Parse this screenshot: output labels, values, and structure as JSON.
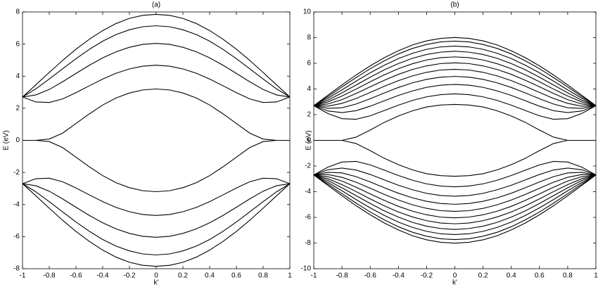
{
  "chart_data": [
    {
      "type": "line",
      "title": "(a)",
      "y_label": "E (eV)",
      "x_label": "k'",
      "color": "#000000",
      "xlim": [
        -1,
        1
      ],
      "ylim": [
        -8,
        8
      ],
      "xticks": [
        -1,
        -0.8,
        -0.6,
        -0.4,
        -0.2,
        0,
        0.2,
        0.4,
        0.6,
        0.8,
        1
      ],
      "yticks": [
        -8,
        -6,
        -4,
        -2,
        0,
        2,
        4,
        6,
        8
      ],
      "x": [
        -1,
        -0.9,
        -0.8,
        -0.7,
        -0.6,
        -0.5,
        -0.4,
        -0.3,
        -0.2,
        -0.1,
        0,
        0.1,
        0.2,
        0.3,
        0.4,
        0.5,
        0.6,
        0.7,
        0.8,
        0.9,
        1
      ],
      "series": [
        {
          "values": [
            2.7,
            3.46,
            4.23,
            4.98,
            5.68,
            6.3,
            6.84,
            7.28,
            7.6,
            7.79,
            7.85,
            7.79,
            7.6,
            7.28,
            6.84,
            6.3,
            5.68,
            4.98,
            4.23,
            3.46,
            2.7
          ]
        },
        {
          "values": [
            2.7,
            3.21,
            3.82,
            4.46,
            5.09,
            5.67,
            6.18,
            6.59,
            6.89,
            7.08,
            7.14,
            7.08,
            6.89,
            6.59,
            6.18,
            5.67,
            5.09,
            4.46,
            3.82,
            3.21,
            2.7
          ]
        },
        {
          "values": [
            2.7,
            2.83,
            3.17,
            3.65,
            4.17,
            4.68,
            5.14,
            5.52,
            5.8,
            5.98,
            6.04,
            5.98,
            5.8,
            5.52,
            5.14,
            4.68,
            4.17,
            3.65,
            3.17,
            2.83,
            2.7
          ]
        },
        {
          "values": [
            2.7,
            2.39,
            2.36,
            2.58,
            2.97,
            3.4,
            3.82,
            4.18,
            4.45,
            4.62,
            4.68,
            4.62,
            4.45,
            4.18,
            3.82,
            3.4,
            2.97,
            2.58,
            2.36,
            2.39,
            2.7
          ]
        },
        {
          "values": [
            0,
            0,
            0.08,
            0.45,
            1.05,
            1.65,
            2.2,
            2.64,
            2.95,
            3.14,
            3.2,
            3.14,
            2.95,
            2.64,
            2.2,
            1.65,
            1.05,
            0.45,
            0.08,
            0,
            0
          ]
        },
        {
          "values": [
            0,
            0,
            -0.08,
            -0.45,
            -1.05,
            -1.65,
            -2.2,
            -2.64,
            -2.95,
            -3.14,
            -3.2,
            -3.14,
            -2.95,
            -2.64,
            -2.2,
            -1.65,
            -1.05,
            -0.45,
            -0.08,
            0,
            0
          ]
        },
        {
          "values": [
            -2.7,
            -2.39,
            -2.36,
            -2.58,
            -2.97,
            -3.4,
            -3.82,
            -4.18,
            -4.45,
            -4.62,
            -4.68,
            -4.62,
            -4.45,
            -4.18,
            -3.82,
            -3.4,
            -2.97,
            -2.58,
            -2.36,
            -2.39,
            -2.7
          ]
        },
        {
          "values": [
            -2.7,
            -2.83,
            -3.17,
            -3.65,
            -4.17,
            -4.68,
            -5.14,
            -5.52,
            -5.8,
            -5.98,
            -6.04,
            -5.98,
            -5.8,
            -5.52,
            -5.14,
            -4.68,
            -4.17,
            -3.65,
            -3.17,
            -2.83,
            -2.7
          ]
        },
        {
          "values": [
            -2.7,
            -3.21,
            -3.82,
            -4.46,
            -5.09,
            -5.67,
            -6.18,
            -6.59,
            -6.89,
            -7.08,
            -7.14,
            -7.08,
            -6.89,
            -6.59,
            -6.18,
            -5.67,
            -5.09,
            -4.46,
            -3.82,
            -3.21,
            -2.7
          ]
        },
        {
          "values": [
            -2.7,
            -3.46,
            -4.23,
            -4.98,
            -5.68,
            -6.3,
            -6.84,
            -7.28,
            -7.6,
            -7.79,
            -7.85,
            -7.79,
            -7.6,
            -7.28,
            -6.84,
            -6.3,
            -5.68,
            -4.98,
            -4.23,
            -3.46,
            -2.7
          ]
        }
      ]
    },
    {
      "type": "line",
      "title": "(b)",
      "y_label": "E (eV)",
      "x_label": "k'",
      "color": "#000000",
      "xlim": [
        -1,
        1
      ],
      "ylim": [
        -10,
        10
      ],
      "xticks": [
        -1,
        -0.8,
        -0.6,
        -0.4,
        -0.2,
        0,
        0.2,
        0.4,
        0.6,
        0.8,
        1
      ],
      "yticks": [
        -10,
        -8,
        -6,
        -4,
        -2,
        0,
        2,
        4,
        6,
        8,
        10
      ],
      "x": [
        -1,
        -0.9,
        -0.8,
        -0.7,
        -0.6,
        -0.5,
        -0.4,
        -0.3,
        -0.2,
        -0.1,
        0,
        0.1,
        0.2,
        0.3,
        0.4,
        0.5,
        0.6,
        0.7,
        0.8,
        0.9,
        1
      ],
      "series": [
        {
          "values": [
            2.7,
            3.51,
            4.32,
            5.09,
            5.8,
            6.44,
            6.98,
            7.43,
            7.75,
            7.94,
            8.01,
            7.94,
            7.75,
            7.43,
            6.98,
            6.44,
            5.8,
            5.09,
            4.32,
            3.51,
            2.7
          ]
        },
        {
          "values": [
            2.7,
            3.41,
            4.16,
            4.89,
            5.58,
            6.19,
            6.73,
            7.16,
            7.47,
            7.67,
            7.73,
            7.67,
            7.47,
            7.16,
            6.73,
            6.19,
            5.58,
            4.89,
            4.16,
            3.41,
            2.7
          ]
        },
        {
          "values": [
            2.7,
            3.28,
            3.93,
            4.61,
            5.26,
            5.85,
            6.37,
            6.78,
            7.09,
            7.28,
            7.34,
            7.28,
            7.09,
            6.78,
            6.37,
            5.85,
            5.26,
            4.61,
            3.93,
            3.28,
            2.7
          ]
        },
        {
          "values": [
            2.7,
            3.13,
            3.7,
            4.31,
            4.92,
            5.49,
            5.98,
            6.39,
            6.69,
            6.87,
            6.94,
            6.87,
            6.69,
            6.39,
            5.98,
            5.49,
            4.92,
            4.31,
            3.7,
            3.13,
            2.7
          ]
        },
        {
          "values": [
            2.7,
            2.99,
            3.45,
            3.99,
            4.56,
            5.1,
            5.58,
            5.97,
            6.26,
            6.44,
            6.5,
            6.44,
            6.26,
            5.97,
            5.58,
            5.1,
            4.56,
            3.99,
            3.45,
            2.99,
            2.7
          ]
        },
        {
          "values": [
            2.7,
            2.83,
            3.17,
            3.65,
            4.17,
            4.68,
            5.14,
            5.52,
            5.8,
            5.98,
            6.04,
            5.98,
            5.8,
            5.52,
            5.14,
            4.68,
            4.17,
            3.65,
            3.17,
            2.83,
            2.7
          ]
        },
        {
          "values": [
            2.7,
            2.66,
            2.88,
            3.26,
            3.73,
            4.21,
            4.65,
            5.02,
            5.3,
            5.48,
            5.53,
            5.48,
            5.3,
            5.02,
            4.65,
            4.21,
            3.73,
            3.26,
            2.88,
            2.66,
            2.7
          ]
        },
        {
          "values": [
            2.7,
            2.49,
            2.54,
            2.83,
            3.24,
            3.69,
            4.12,
            4.48,
            4.75,
            4.92,
            4.98,
            4.92,
            4.75,
            4.48,
            4.12,
            3.69,
            3.24,
            2.83,
            2.54,
            2.49,
            2.7
          ]
        },
        {
          "values": [
            2.7,
            2.29,
            2.16,
            2.31,
            2.66,
            3.08,
            3.5,
            3.85,
            4.13,
            4.3,
            4.35,
            4.3,
            4.13,
            3.85,
            3.5,
            3.08,
            2.66,
            2.31,
            2.16,
            2.29,
            2.7
          ]
        },
        {
          "values": [
            2.7,
            2.09,
            1.69,
            1.64,
            1.91,
            2.32,
            2.74,
            3.11,
            3.39,
            3.56,
            3.62,
            3.56,
            3.39,
            3.11,
            2.74,
            2.32,
            1.91,
            1.64,
            1.69,
            2.09,
            2.7
          ]
        },
        {
          "values": [
            0,
            0,
            0,
            0.25,
            0.8,
            1.4,
            1.9,
            2.3,
            2.6,
            2.75,
            2.8,
            2.75,
            2.6,
            2.3,
            1.9,
            1.4,
            0.8,
            0.25,
            0,
            0,
            0
          ]
        },
        {
          "values": [
            0,
            0,
            0,
            -0.25,
            -0.8,
            -1.4,
            -1.9,
            -2.3,
            -2.6,
            -2.75,
            -2.8,
            -2.75,
            -2.6,
            -2.3,
            -1.9,
            -1.4,
            -0.8,
            -0.25,
            0,
            0,
            0
          ]
        },
        {
          "values": [
            -2.7,
            -2.09,
            -1.69,
            -1.64,
            -1.91,
            -2.32,
            -2.74,
            -3.11,
            -3.39,
            -3.56,
            -3.62,
            -3.56,
            -3.39,
            -3.11,
            -2.74,
            -2.32,
            -1.91,
            -1.64,
            -1.69,
            -2.09,
            -2.7
          ]
        },
        {
          "values": [
            -2.7,
            -2.29,
            -2.16,
            -2.31,
            -2.66,
            -3.08,
            -3.5,
            -3.85,
            -4.13,
            -4.3,
            -4.35,
            -4.3,
            -4.13,
            -3.85,
            -3.5,
            -3.08,
            -2.66,
            -2.31,
            -2.16,
            -2.29,
            -2.7
          ]
        },
        {
          "values": [
            -2.7,
            -2.49,
            -2.54,
            -2.83,
            -3.24,
            -3.69,
            -4.12,
            -4.48,
            -4.75,
            -4.92,
            -4.98,
            -4.92,
            -4.75,
            -4.48,
            -4.12,
            -3.69,
            -3.24,
            -2.83,
            -2.54,
            -2.49,
            -2.7
          ]
        },
        {
          "values": [
            -2.7,
            -2.66,
            -2.88,
            -3.26,
            -3.73,
            -4.21,
            -4.65,
            -5.02,
            -5.3,
            -5.48,
            -5.53,
            -5.48,
            -5.3,
            -5.02,
            -4.65,
            -4.21,
            -3.73,
            -3.26,
            -2.88,
            -2.66,
            -2.7
          ]
        },
        {
          "values": [
            -2.7,
            -2.83,
            -3.17,
            -3.65,
            -4.17,
            -4.68,
            -5.14,
            -5.52,
            -5.8,
            -5.98,
            -6.04,
            -5.98,
            -5.8,
            -5.52,
            -5.14,
            -4.68,
            -4.17,
            -3.65,
            -3.17,
            -2.83,
            -2.7
          ]
        },
        {
          "values": [
            -2.7,
            -2.99,
            -3.45,
            -3.99,
            -4.56,
            -5.1,
            -5.58,
            -5.97,
            -6.26,
            -6.44,
            -6.5,
            -6.44,
            -6.26,
            -5.97,
            -5.58,
            -5.1,
            -4.56,
            -3.99,
            -3.45,
            -2.99,
            -2.7
          ]
        },
        {
          "values": [
            -2.7,
            -3.13,
            -3.7,
            -4.31,
            -4.92,
            -5.49,
            -5.98,
            -6.39,
            -6.69,
            -6.87,
            -6.94,
            -6.87,
            -6.69,
            -6.39,
            -5.98,
            -5.49,
            -4.92,
            -4.31,
            -3.7,
            -3.13,
            -2.7
          ]
        },
        {
          "values": [
            -2.7,
            -3.28,
            -3.93,
            -4.61,
            -5.26,
            -5.85,
            -6.37,
            -6.78,
            -7.09,
            -7.28,
            -7.34,
            -7.28,
            -7.09,
            -6.78,
            -6.37,
            -5.85,
            -5.26,
            -4.61,
            -3.93,
            -3.28,
            -2.7
          ]
        },
        {
          "values": [
            -2.7,
            -3.41,
            -4.16,
            -4.89,
            -5.58,
            -6.19,
            -6.73,
            -7.16,
            -7.47,
            -7.67,
            -7.73,
            -7.67,
            -7.47,
            -7.16,
            -6.73,
            -6.19,
            -5.58,
            -4.89,
            -4.16,
            -3.41,
            -2.7
          ]
        },
        {
          "values": [
            -2.7,
            -3.51,
            -4.32,
            -5.09,
            -5.8,
            -6.44,
            -6.98,
            -7.43,
            -7.75,
            -7.94,
            -8.01,
            -7.94,
            -7.75,
            -7.43,
            -6.98,
            -6.44,
            -5.8,
            -5.09,
            -4.32,
            -3.51,
            -2.7
          ]
        }
      ]
    }
  ]
}
